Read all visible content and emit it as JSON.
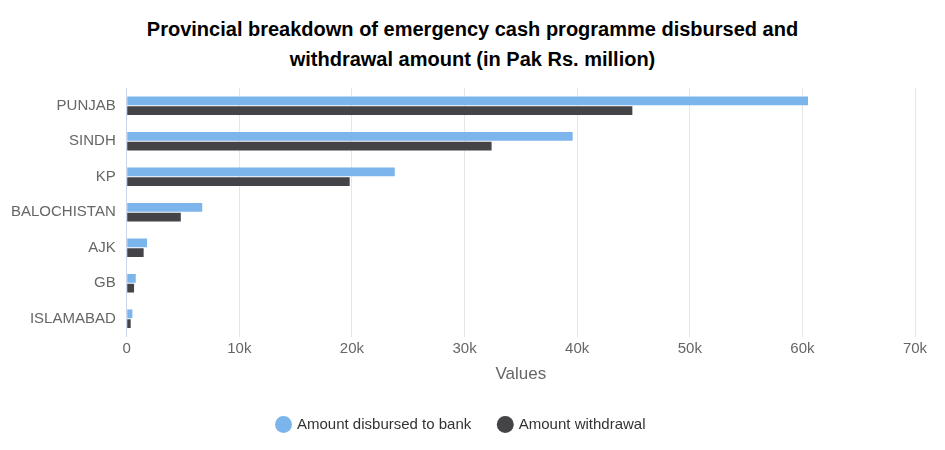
{
  "chart_data": {
    "type": "bar",
    "orientation": "horizontal",
    "title": "Provincial breakdown of emergency cash programme disbursed and withdrawal amount (in Pak Rs. million)",
    "xlabel": "Values",
    "categories": [
      "PUNJAB",
      "SINDH",
      "KP",
      "BALOCHISTAN",
      "AJK",
      "GB",
      "ISLAMABAD"
    ],
    "series": [
      {
        "name": "Amount disbursed to bank",
        "color": "#7cb5ec",
        "values": [
          60500,
          39600,
          23800,
          6700,
          1800,
          800,
          500
        ]
      },
      {
        "name": "Amount withdrawal",
        "color": "#434348",
        "values": [
          44900,
          32400,
          19800,
          4800,
          1500,
          650,
          350
        ]
      }
    ],
    "xlim": [
      0,
      70000
    ],
    "xticks": [
      0,
      {
        "value": 10000,
        "label": "10k"
      },
      {
        "value": 20000,
        "label": "20k"
      },
      {
        "value": 30000,
        "label": "30k"
      },
      {
        "value": 40000,
        "label": "40k"
      },
      {
        "value": 50000,
        "label": "50k"
      },
      {
        "value": 60000,
        "label": "60k"
      },
      {
        "value": 70000,
        "label": "70k"
      }
    ],
    "grid": true,
    "legend": "bottom"
  }
}
